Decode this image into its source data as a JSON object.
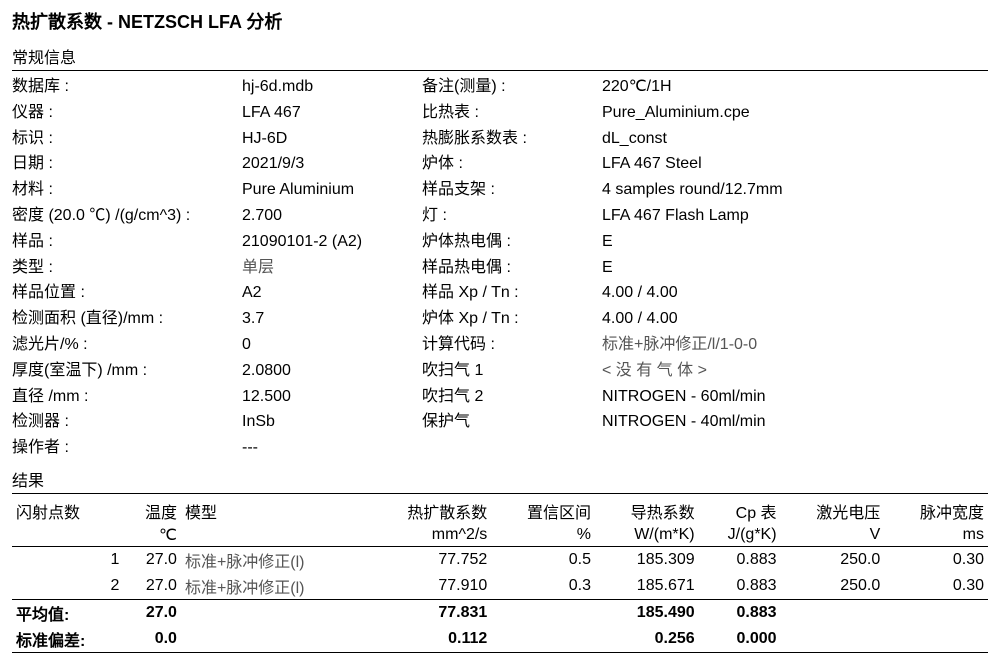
{
  "title": "热扩散系数 - NETZSCH LFA 分析",
  "section_general": "常规信息",
  "info": {
    "l1": "数据库 :",
    "v1": "hj-6d.mdb",
    "l1b": "备注(测量) :",
    "v1b": "220℃/1H",
    "l2": "仪器 :",
    "v2": "LFA 467",
    "l2b": "比热表 :",
    "v2b": "Pure_Aluminium.cpe",
    "l3": "标识 :",
    "v3": "HJ-6D",
    "l3b": "热膨胀系数表 :",
    "v3b": "dL_const",
    "l4": "日期 :",
    "v4": "2021/9/3",
    "l4b": "炉体 :",
    "v4b": "LFA 467 Steel",
    "l5": "材料 :",
    "v5": "Pure Aluminium",
    "l5b": "样品支架 :",
    "v5b": "4 samples round/12.7mm",
    "l6": "密度 (20.0 ℃) /(g/cm^3) :",
    "v6": "2.700",
    "l6b": "灯 :",
    "v6b": "LFA 467 Flash Lamp",
    "l7": "样品 :",
    "v7": "21090101-2 (A2)",
    "l7b": "炉体热电偶 :",
    "v7b": "E",
    "l8": "类型 :",
    "v8": "单层",
    "l8b": "样品热电偶 :",
    "v8b": "E",
    "l9": "样品位置 :",
    "v9": "A2",
    "l9b": "样品 Xp / Tn :",
    "v9b": "4.00 / 4.00",
    "l10": "检测面积 (直径)/mm :",
    "v10": "3.7",
    "l10b": "炉体 Xp / Tn :",
    "v10b": "4.00 / 4.00",
    "l11": "滤光片/% :",
    "v11": "0",
    "l11b": "计算代码 :",
    "v11b": "标准+脉冲修正/l/1-0-0",
    "l12": "厚度(室温下) /mm :",
    "v12": "2.0800",
    "l12b": "吹扫气 1",
    "v12b": "< 没 有 气 体 >",
    "l13": "直径 /mm :",
    "v13": "12.500",
    "l13b": "吹扫气 2",
    "v13b": "NITROGEN - 60ml/min",
    "l14": "检测器 :",
    "v14": "InSb",
    "l14b": "保护气",
    "v14b": "NITROGEN - 40ml/min",
    "l15": "操作者 :",
    "v15": "---"
  },
  "section_results": "结果",
  "columns": {
    "c1": "闪射点数",
    "c2a": "温度",
    "c2b": "℃",
    "c3": "模型",
    "c4a": "热扩散系数",
    "c4b": "mm^2/s",
    "c5a": "置信区间",
    "c5b": "%",
    "c6a": "导热系数",
    "c6b": "W/(m*K)",
    "c7a": "Cp 表",
    "c7b": "J/(g*K)",
    "c8a": "激光电压",
    "c8b": "V",
    "c9a": "脉冲宽度",
    "c9b": "ms"
  },
  "rows": [
    {
      "n": "1",
      "t": "27.0",
      "m": "标准+脉冲修正(l)",
      "d": "77.752",
      "ci": "0.5",
      "k": "185.309",
      "cp": "0.883",
      "v": "250.0",
      "pw": "0.30"
    },
    {
      "n": "2",
      "t": "27.0",
      "m": "标准+脉冲修正(l)",
      "d": "77.910",
      "ci": "0.3",
      "k": "185.671",
      "cp": "0.883",
      "v": "250.0",
      "pw": "0.30"
    }
  ],
  "summary": {
    "avg_label": "平均值:",
    "avg_t": "27.0",
    "avg_d": "77.831",
    "avg_k": "185.490",
    "avg_cp": "0.883",
    "std_label": "标准偏差:",
    "std_t": "0.0",
    "std_d": "0.112",
    "std_k": "0.256",
    "std_cp": "0.000"
  }
}
